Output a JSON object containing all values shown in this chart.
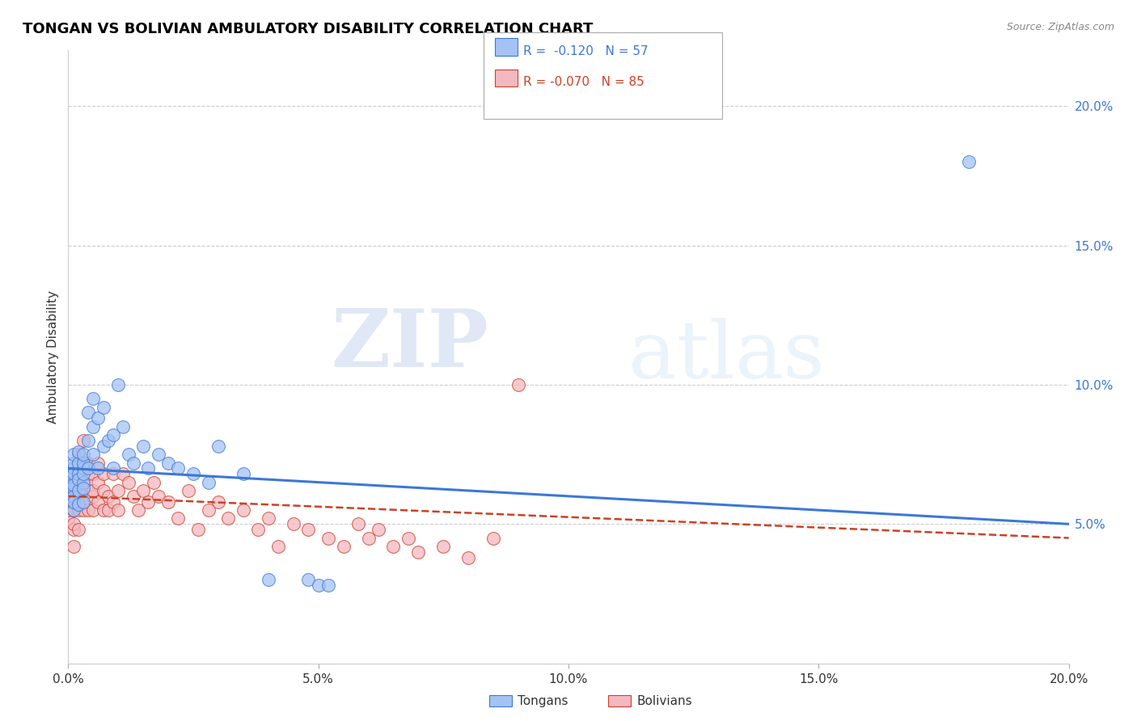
{
  "title": "TONGAN VS BOLIVIAN AMBULATORY DISABILITY CORRELATION CHART",
  "source": "Source: ZipAtlas.com",
  "ylabel": "Ambulatory Disability",
  "xlim": [
    0.0,
    0.2
  ],
  "ylim": [
    0.0,
    0.22
  ],
  "xticks": [
    0.0,
    0.05,
    0.1,
    0.15,
    0.2
  ],
  "yticks_right": [
    0.05,
    0.1,
    0.15,
    0.2
  ],
  "tongan_R": "-0.120",
  "tongan_N": "57",
  "bolivian_R": "-0.070",
  "bolivian_N": "85",
  "tongan_color": "#a4c2f4",
  "bolivian_color": "#f4b8c1",
  "tongan_color_dark": "#3c78d8",
  "bolivian_color_dark": "#cc4125",
  "trend_tongan_color": "#3c78d8",
  "trend_bolivian_color": "#cc4125",
  "watermark_zip": "ZIP",
  "watermark_atlas": "atlas",
  "tongan_x": [
    0.0,
    0.0,
    0.0,
    0.001,
    0.001,
    0.001,
    0.001,
    0.001,
    0.001,
    0.001,
    0.001,
    0.001,
    0.001,
    0.002,
    0.002,
    0.002,
    0.002,
    0.002,
    0.002,
    0.003,
    0.003,
    0.003,
    0.003,
    0.003,
    0.003,
    0.003,
    0.004,
    0.004,
    0.004,
    0.005,
    0.005,
    0.005,
    0.006,
    0.006,
    0.007,
    0.007,
    0.008,
    0.009,
    0.009,
    0.01,
    0.011,
    0.012,
    0.013,
    0.015,
    0.016,
    0.018,
    0.02,
    0.022,
    0.025,
    0.028,
    0.03,
    0.035,
    0.04,
    0.048,
    0.05,
    0.052,
    0.18
  ],
  "tongan_y": [
    0.065,
    0.067,
    0.06,
    0.065,
    0.063,
    0.07,
    0.055,
    0.06,
    0.068,
    0.072,
    0.058,
    0.075,
    0.064,
    0.068,
    0.062,
    0.072,
    0.057,
    0.076,
    0.066,
    0.065,
    0.07,
    0.063,
    0.068,
    0.072,
    0.058,
    0.075,
    0.08,
    0.09,
    0.07,
    0.085,
    0.075,
    0.095,
    0.088,
    0.07,
    0.092,
    0.078,
    0.08,
    0.082,
    0.07,
    0.1,
    0.085,
    0.075,
    0.072,
    0.078,
    0.07,
    0.075,
    0.072,
    0.07,
    0.068,
    0.065,
    0.078,
    0.068,
    0.03,
    0.03,
    0.028,
    0.028,
    0.18
  ],
  "bolivian_x": [
    0.0,
    0.0,
    0.0,
    0.0,
    0.0,
    0.001,
    0.001,
    0.001,
    0.001,
    0.001,
    0.001,
    0.001,
    0.001,
    0.001,
    0.001,
    0.001,
    0.001,
    0.002,
    0.002,
    0.002,
    0.002,
    0.002,
    0.002,
    0.002,
    0.002,
    0.003,
    0.003,
    0.003,
    0.003,
    0.003,
    0.003,
    0.003,
    0.004,
    0.004,
    0.004,
    0.004,
    0.005,
    0.005,
    0.005,
    0.005,
    0.006,
    0.006,
    0.006,
    0.007,
    0.007,
    0.007,
    0.008,
    0.008,
    0.009,
    0.009,
    0.01,
    0.01,
    0.011,
    0.012,
    0.013,
    0.014,
    0.015,
    0.016,
    0.017,
    0.018,
    0.02,
    0.022,
    0.024,
    0.026,
    0.028,
    0.03,
    0.032,
    0.035,
    0.038,
    0.04,
    0.042,
    0.045,
    0.048,
    0.052,
    0.055,
    0.058,
    0.06,
    0.062,
    0.065,
    0.068,
    0.07,
    0.075,
    0.08,
    0.085,
    0.09
  ],
  "bolivian_y": [
    0.058,
    0.052,
    0.06,
    0.055,
    0.065,
    0.062,
    0.048,
    0.055,
    0.068,
    0.06,
    0.05,
    0.058,
    0.065,
    0.07,
    0.042,
    0.055,
    0.063,
    0.058,
    0.068,
    0.055,
    0.072,
    0.048,
    0.065,
    0.062,
    0.075,
    0.06,
    0.068,
    0.055,
    0.072,
    0.058,
    0.065,
    0.08,
    0.062,
    0.055,
    0.068,
    0.072,
    0.06,
    0.068,
    0.055,
    0.062,
    0.065,
    0.058,
    0.072,
    0.062,
    0.055,
    0.068,
    0.06,
    0.055,
    0.068,
    0.058,
    0.062,
    0.055,
    0.068,
    0.065,
    0.06,
    0.055,
    0.062,
    0.058,
    0.065,
    0.06,
    0.058,
    0.052,
    0.062,
    0.048,
    0.055,
    0.058,
    0.052,
    0.055,
    0.048,
    0.052,
    0.042,
    0.05,
    0.048,
    0.045,
    0.042,
    0.05,
    0.045,
    0.048,
    0.042,
    0.045,
    0.04,
    0.042,
    0.038,
    0.045,
    0.1
  ]
}
